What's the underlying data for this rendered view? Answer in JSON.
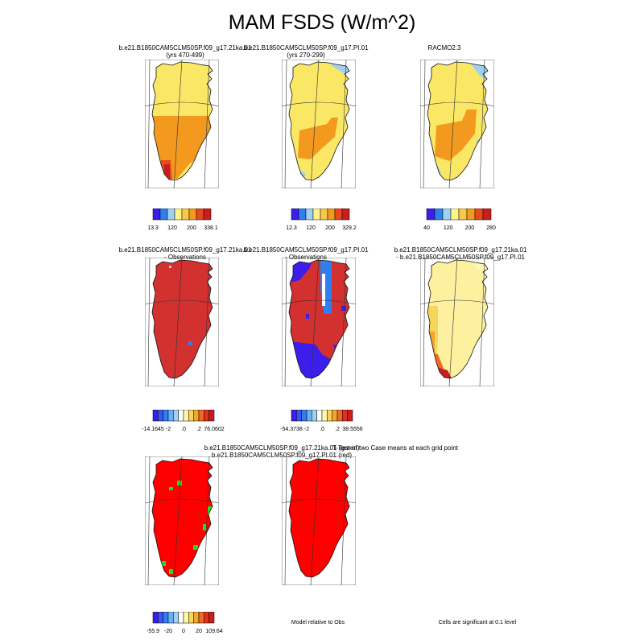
{
  "title": "MAM FSDS (W/m^2)",
  "panels": [
    {
      "title": [
        "b.e21.B1850CAM5CLM50SP.f09_g17.21ka.01",
        "(yrs 470-499)"
      ],
      "map": "model1"
    },
    {
      "title": [
        "b.e21.B1850CAM5CLM50SP.f09_g17.PI.01",
        "(yrs 270-299)"
      ],
      "map": "model2"
    },
    {
      "title": [
        "RACMO2.3",
        ""
      ],
      "map": "racmo"
    },
    {
      "title": [
        "b.e21.B1850CAM5CLM50SP.f09_g17.21ka.01",
        "- Observations"
      ],
      "map": "bias1"
    },
    {
      "title": [
        "b.e21.B1850CAM5CLM50SP.f09_g17.PI.01",
        "- Observations"
      ],
      "map": "bias2"
    },
    {
      "title": [
        "b.e21.B1850CAM5CLM50SP.f09_g17.21ka.01",
        "- b.e21.B1850CAM5CLM50SP.f09_g17.PI.01"
      ],
      "map": "diff"
    },
    {
      "title": [
        "b.e21.B1850CAM5CLM50SP.f09_g17.21ka.01 (green)",
        "b.e21.B1850CAM5CLM50SP.f09_g17.PI.01 (red)"
      ],
      "map": "rel"
    },
    {
      "title": [
        "T-Test of two Case means at each grid point",
        ""
      ],
      "map": "ttest"
    }
  ],
  "colorbars": [
    {
      "colors": [
        "#3b1eeb",
        "#2f7ff0",
        "#9ed2f0",
        "#fff38a",
        "#f6c94a",
        "#f39a1e",
        "#e8491c",
        "#c81e1e"
      ],
      "labels": [
        "13.3",
        "120",
        "200",
        "338.1"
      ]
    },
    {
      "colors": [
        "#3b1eeb",
        "#2f7ff0",
        "#9ed2f0",
        "#fff38a",
        "#f6c94a",
        "#f39a1e",
        "#e8491c",
        "#c81e1e"
      ],
      "labels": [
        "12.3",
        "120",
        "200",
        "329.2"
      ]
    },
    {
      "colors": [
        "#3b1eeb",
        "#2f7ff0",
        "#9ed2f0",
        "#fff38a",
        "#f6c94a",
        "#f39a1e",
        "#e8491c",
        "#c81e1e"
      ],
      "labels": [
        "40",
        "120",
        "200",
        "280"
      ]
    },
    {
      "colors": [
        "#3b1eeb",
        "#3b55f2",
        "#2f7ff0",
        "#6bb0f5",
        "#9ed2f0",
        "#ffffff",
        "#fff7b0",
        "#f6d65a",
        "#f3a52e",
        "#ee6a22",
        "#e3301e",
        "#c81e1e"
      ],
      "labels": [
        "-14.1645",
        "-2",
        ".0",
        ".2",
        "76.0602"
      ]
    },
    {
      "colors": [
        "#3b1eeb",
        "#3b55f2",
        "#2f7ff0",
        "#6bb0f5",
        "#9ed2f0",
        "#ffffff",
        "#fff7b0",
        "#f6d65a",
        "#f3a52e",
        "#ee6a22",
        "#e3301e",
        "#c81e1e"
      ],
      "labels": [
        "-54.3738",
        "-2",
        ".0",
        ".2",
        "38.5556"
      ]
    },
    {
      "colors": [
        "#3b1eeb",
        "#3b55f2",
        "#2f7ff0",
        "#6bb0f5",
        "#9ed2f0",
        "#ffffff",
        "#fff7b0",
        "#f6d65a",
        "#f3a52e",
        "#ee6a22",
        "#e3301e",
        "#c81e1e"
      ],
      "labels": [
        "-55.9",
        "-20",
        "0",
        "20",
        "109.64"
      ]
    }
  ],
  "footnotes": {
    "rel": "Model relative to Obs",
    "ttest": "Cells are significant at 0.1 level"
  },
  "chart_data": {
    "type": "heatmap",
    "title": "MAM FSDS (W/m^2)",
    "region": "Greenland",
    "panels": [
      {
        "name": "b.e21.B1850CAM5CLM50SP.f09_g17.21ka.01 (yrs 470-499)",
        "range": [
          13.3,
          338.1
        ],
        "levels": [
          13.3,
          120,
          200,
          338.1
        ]
      },
      {
        "name": "b.e21.B1850CAM5CLM50SP.f09_g17.PI.01 (yrs 270-299)",
        "range": [
          12.3,
          329.2
        ],
        "levels": [
          12.3,
          120,
          200,
          329.2
        ]
      },
      {
        "name": "RACMO2.3",
        "levels": [
          40,
          120,
          200,
          280
        ]
      },
      {
        "name": "b.e21.B1850CAM5CLM50SP.f09_g17.21ka.01 - Observations",
        "range": [
          -14.1645,
          76.0602
        ]
      },
      {
        "name": "b.e21.B1850CAM5CLM50SP.f09_g17.PI.01 - Observations",
        "range": [
          -54.3738,
          38.5556
        ]
      },
      {
        "name": "b.e21.B1850CAM5CLM50SP.f09_g17.21ka.01 - b.e21.B1850CAM5CLM50SP.f09_g17.PI.01",
        "range": [
          -55.9,
          109.64
        ]
      },
      {
        "name": "Model relative to Obs"
      },
      {
        "name": "T-Test of two Case means at each grid point"
      }
    ]
  }
}
